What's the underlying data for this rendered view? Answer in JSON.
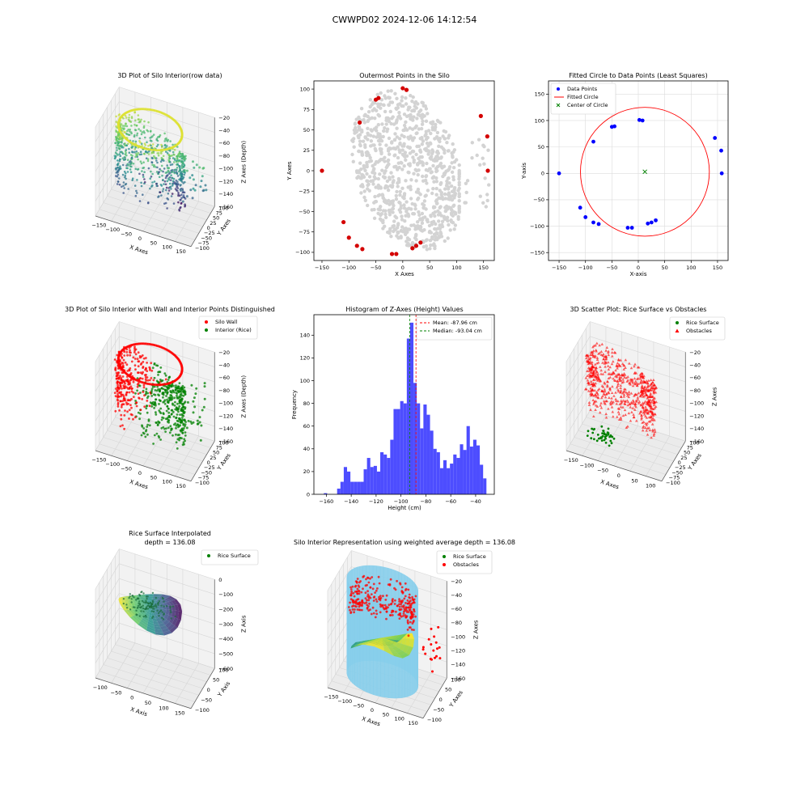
{
  "figure": {
    "suptitle": "CWWPD02 2024-12-06 14:12:54"
  },
  "colors": {
    "viridis": [
      "#440154",
      "#3b528b",
      "#21918c",
      "#5ec962",
      "#fde725"
    ],
    "wall": "#ff0000",
    "rice": "#008000",
    "gray_points": "#d3d3d3",
    "outer_points": "#d40000",
    "fit_points": "#0000ff",
    "hist": "#4d4dff",
    "cylinder": "#87ceeb"
  },
  "chart_data": [
    {
      "id": "p1",
      "type": "scatter3d",
      "title": "3D Plot of Silo Interior(row data)",
      "xlabel": "X Axes",
      "ylabel": "Y Axes",
      "zlabel": "Z Axes (Depth)",
      "xticks": [
        "−150",
        "−100",
        "−50",
        "0",
        "50",
        "100",
        "150"
      ],
      "yticks": [
        "−100",
        "−75",
        "−50",
        "−25",
        "0",
        "25",
        "50",
        "75",
        "100"
      ],
      "zticks": [
        "−20",
        "−40",
        "−60",
        "−80",
        "−100",
        "−120",
        "−140",
        "−160"
      ]
    },
    {
      "id": "p2",
      "type": "scatter",
      "title": "Outermost Points in the Silo",
      "xlabel": "X Axes",
      "ylabel": "Y Axes",
      "xlim": [
        -165,
        170
      ],
      "ylim": [
        -110,
        110
      ],
      "xticks": [
        -150,
        -100,
        -50,
        0,
        50,
        100,
        150
      ],
      "yticks": [
        -100,
        -75,
        -50,
        -25,
        0,
        25,
        50,
        75,
        100
      ],
      "outer_points": [
        [
          -150,
          0
        ],
        [
          -110,
          -63
        ],
        [
          -100,
          -82
        ],
        [
          -85,
          -92
        ],
        [
          -75,
          -96
        ],
        [
          -80,
          59
        ],
        [
          -50,
          87
        ],
        [
          -45,
          89
        ],
        [
          -20,
          -102
        ],
        [
          -12,
          -102
        ],
        [
          0,
          101
        ],
        [
          7,
          99
        ],
        [
          18,
          -95
        ],
        [
          25,
          -92
        ],
        [
          33,
          -88
        ],
        [
          145,
          67
        ],
        [
          157,
          42
        ],
        [
          158,
          0
        ]
      ]
    },
    {
      "id": "p3",
      "type": "scatter",
      "title": "Fitted Circle to Data Points (Least Squares)",
      "xlabel": "X-axis",
      "ylabel": "Y-axis",
      "xlim": [
        -170,
        170
      ],
      "ylim": [
        -165,
        175
      ],
      "xticks": [
        -150,
        -100,
        -50,
        0,
        50,
        100,
        150
      ],
      "yticks": [
        -150,
        -100,
        -50,
        0,
        50,
        100,
        150
      ],
      "legend": [
        "Data Points",
        "Fitted Circle",
        "Center of Circle"
      ],
      "legend_loc": "upper-left",
      "points": [
        [
          -150,
          0
        ],
        [
          -110,
          -65
        ],
        [
          -100,
          -83
        ],
        [
          -85,
          -93
        ],
        [
          -75,
          -96
        ],
        [
          -85,
          60
        ],
        [
          -50,
          88
        ],
        [
          -45,
          89
        ],
        [
          -20,
          -103
        ],
        [
          -12,
          -103
        ],
        [
          2,
          101
        ],
        [
          8,
          100
        ],
        [
          18,
          -95
        ],
        [
          25,
          -93
        ],
        [
          33,
          -89
        ],
        [
          145,
          67
        ],
        [
          157,
          43
        ],
        [
          158,
          0
        ]
      ],
      "circle": {
        "cx": 12.5,
        "cy": 3,
        "r": 122
      }
    },
    {
      "id": "p4",
      "type": "scatter3d",
      "title": "3D Plot of Silo Interior with Wall and Interior Points Distinguished",
      "xlabel": "X Axes",
      "ylabel": "Y Axes",
      "zlabel": "Z Axes (Depth)",
      "legend": [
        "Silo Wall",
        "Interior (Rice)"
      ],
      "legend_loc": "upper-right",
      "xticks": [
        "−150",
        "−100",
        "−50",
        "0",
        "50",
        "100",
        "150"
      ],
      "yticks": [
        "−100",
        "−75",
        "−50",
        "−25",
        "0",
        "25",
        "50",
        "75",
        "100"
      ],
      "zticks": [
        "−20",
        "−40",
        "−60",
        "−80",
        "−100",
        "−120",
        "−140",
        "−160"
      ]
    },
    {
      "id": "p5",
      "type": "bar",
      "title": "Histogram of Z-Axes (Height) Values",
      "xlabel": "Height (cm)",
      "ylabel": "Frequency",
      "xlim": [
        -170,
        -25
      ],
      "ylim": [
        0,
        158
      ],
      "xticks": [
        -160,
        -140,
        -120,
        -100,
        -80,
        -60,
        -40
      ],
      "yticks": [
        0,
        20,
        40,
        60,
        80,
        100,
        120,
        140
      ],
      "bin_start": -162,
      "bin_width": 2.667,
      "values": [
        1,
        0,
        0,
        0,
        5,
        11,
        24,
        20,
        11,
        11,
        11,
        11,
        22,
        32,
        24,
        25,
        20,
        37,
        35,
        32,
        48,
        75,
        75,
        82,
        80,
        137,
        151,
        98,
        80,
        58,
        79,
        70,
        56,
        40,
        37,
        23,
        30,
        23,
        27,
        35,
        32,
        44,
        39,
        60,
        42,
        48,
        43,
        26,
        14
      ],
      "mean": -87.96,
      "median": -93.04,
      "legend": [
        "Mean: -87.96 cm",
        "Median: -93.04 cm"
      ],
      "legend_loc": "upper-right"
    },
    {
      "id": "p6",
      "type": "scatter3d",
      "title": "3D Scatter Plot: Rice Surface vs Obstacles",
      "xlabel": "X Axes",
      "ylabel": "Y Axes",
      "zlabel": "Z Axes",
      "legend": [
        "Rice Surface",
        "Obstacles"
      ],
      "legend_loc": "upper-right",
      "xticks": [
        "−150",
        "−100",
        "−50",
        "0",
        "50",
        "100"
      ],
      "yticks": [
        "−100",
        "−75",
        "−50",
        "−25",
        "0",
        "25",
        "50",
        "75",
        "100"
      ],
      "zticks": [
        "−20",
        "−40",
        "−60",
        "−80",
        "−100",
        "−120",
        "−140",
        "−160"
      ]
    },
    {
      "id": "p7",
      "type": "surface3d",
      "title": "Rice Surface Interpolated",
      "subtitle": "depth = 136.08",
      "xlabel": "X Axis",
      "ylabel": "Y Axis",
      "zlabel": "Z Axis",
      "legend": [
        "Rice Surface"
      ],
      "legend_loc": "upper-right",
      "xticks": [
        "−100",
        "−50",
        "0",
        "50",
        "100",
        "150"
      ],
      "yticks": [
        "−100",
        "−50",
        "0",
        "50",
        "100"
      ],
      "zticks": [
        "0",
        "−100",
        "−200",
        "−300",
        "−400",
        "−500",
        "−600"
      ]
    },
    {
      "id": "p8",
      "type": "surface3d",
      "title": "Silo Interior Representation using weighted average depth = 136.08",
      "xlabel": "X Axes",
      "ylabel": "Y Axes",
      "zlabel": "Z Axes",
      "legend": [
        "Rice Surface",
        "Obstacles"
      ],
      "legend_loc": "upper-left",
      "xticks": [
        "−150",
        "−100",
        "−50",
        "0",
        "50",
        "100",
        "150"
      ],
      "yticks": [
        "−100",
        "−50",
        "0",
        "50",
        "100"
      ],
      "zticks": [
        "−20",
        "−40",
        "−60",
        "−80",
        "−100",
        "−120",
        "−140",
        "−160"
      ]
    }
  ]
}
